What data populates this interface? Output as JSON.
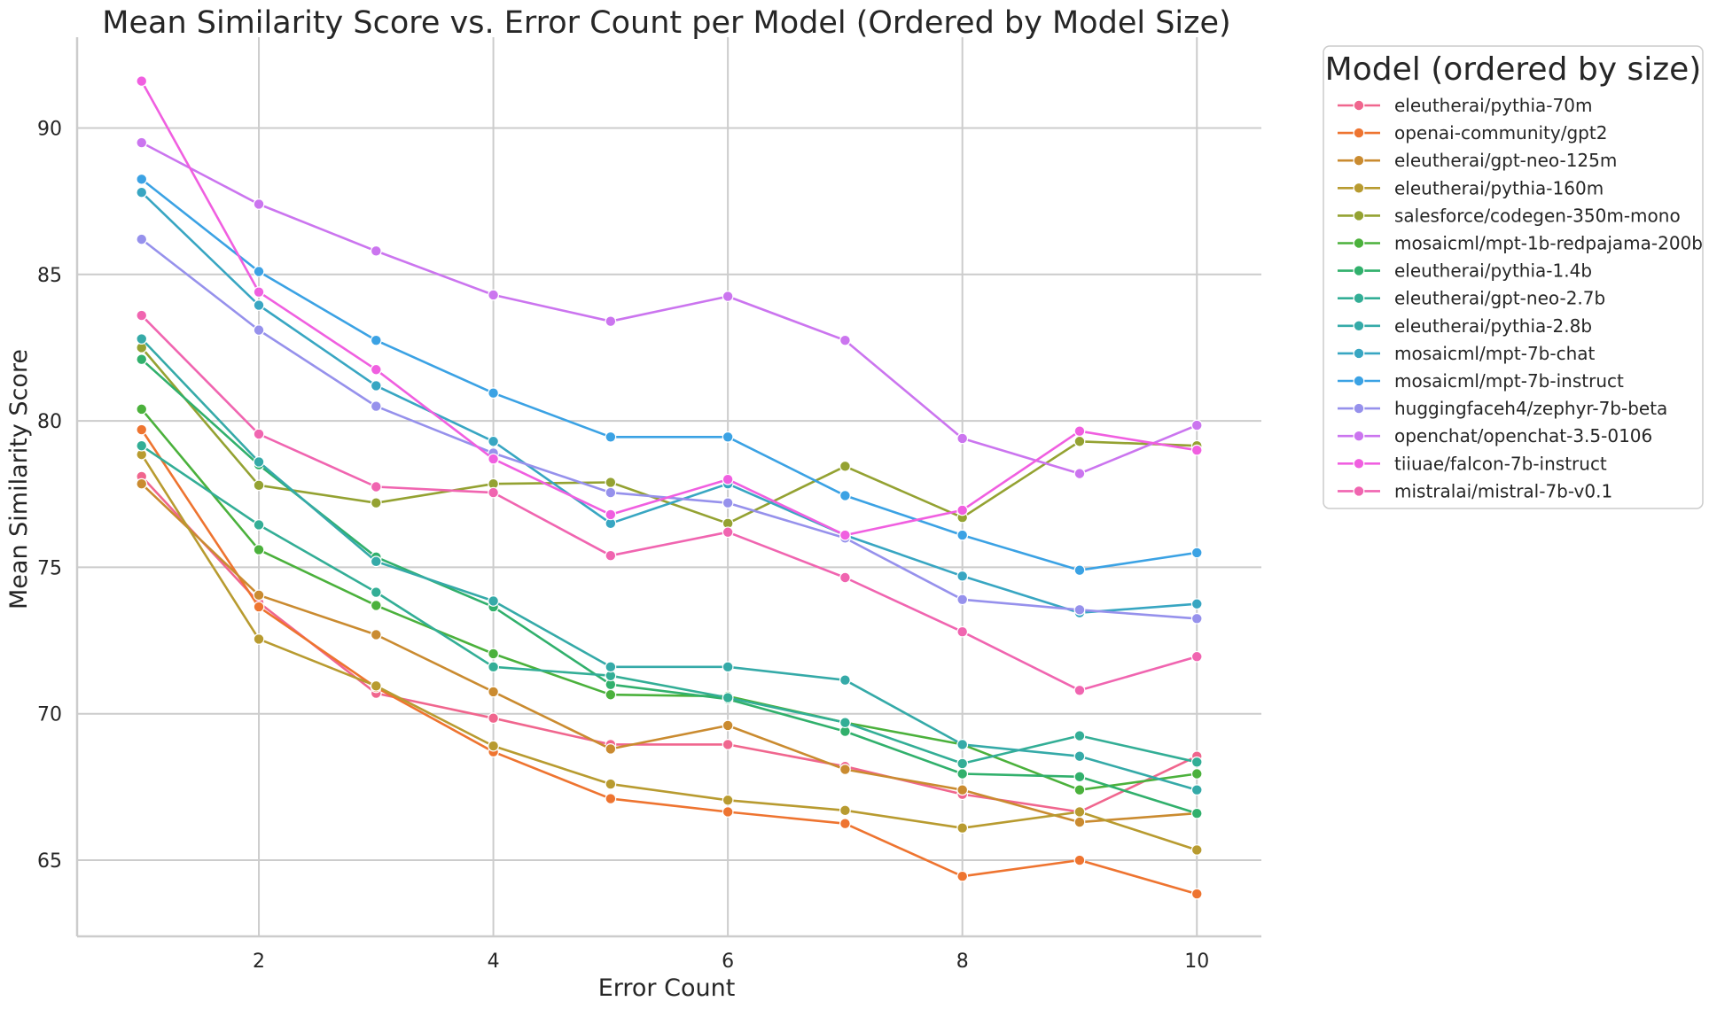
{
  "chart_data": {
    "type": "line",
    "title": "Mean Similarity Score vs. Error Count per Model (Ordered by Model Size)",
    "xlabel": "Error Count",
    "ylabel": "Mean Similarity Score",
    "xlim": [
      0.45,
      10.55
    ],
    "ylim": [
      62.4,
      93.1
    ],
    "xticks": [
      2,
      4,
      6,
      8,
      10
    ],
    "yticks": [
      65,
      70,
      75,
      80,
      85,
      90
    ],
    "grid": true,
    "legend_title": "Model (ordered by size)",
    "legend_position": "outside right",
    "x": [
      1,
      2,
      3,
      4,
      5,
      6,
      7,
      8,
      9,
      10
    ],
    "series": [
      {
        "name": "eleutherai/pythia-70m",
        "color": "#f0668e",
        "values": [
          78.1,
          73.8,
          70.7,
          69.85,
          68.95,
          68.95,
          68.2,
          67.25,
          66.65,
          68.55
        ]
      },
      {
        "name": "openai-community/gpt2",
        "color": "#ee7430",
        "values": [
          79.7,
          73.65,
          70.9,
          68.7,
          67.1,
          66.65,
          66.25,
          64.45,
          65.0,
          63.85
        ]
      },
      {
        "name": "eleutherai/gpt-neo-125m",
        "color": "#ca8b30",
        "values": [
          77.85,
          74.05,
          72.7,
          70.75,
          68.8,
          69.6,
          68.1,
          67.4,
          66.3,
          66.6
        ]
      },
      {
        "name": "eleutherai/pythia-160m",
        "color": "#b89b30",
        "values": [
          78.85,
          72.55,
          70.95,
          68.9,
          67.6,
          67.05,
          66.7,
          66.1,
          66.65,
          65.35
        ]
      },
      {
        "name": "salesforce/codegen-350m-mono",
        "color": "#94a232",
        "values": [
          82.5,
          77.8,
          77.2,
          77.85,
          77.9,
          76.5,
          78.45,
          76.7,
          79.3,
          79.15
        ]
      },
      {
        "name": "mosaicml/mpt-1b-redpajama-200b",
        "color": "#4bb13c",
        "values": [
          80.4,
          75.6,
          73.7,
          72.05,
          70.65,
          70.6,
          69.7,
          68.95,
          67.4,
          67.95
        ]
      },
      {
        "name": "eleutherai/pythia-1.4b",
        "color": "#31b06c",
        "values": [
          82.1,
          78.5,
          75.35,
          73.65,
          71.0,
          70.5,
          69.4,
          67.95,
          67.85,
          66.6
        ]
      },
      {
        "name": "eleutherai/gpt-neo-2.7b",
        "color": "#33ae96",
        "values": [
          79.15,
          76.45,
          74.15,
          71.6,
          71.3,
          70.55,
          69.7,
          68.3,
          69.25,
          68.35
        ]
      },
      {
        "name": "eleutherai/pythia-2.8b",
        "color": "#35aaa8",
        "values": [
          82.8,
          78.6,
          75.2,
          73.85,
          71.6,
          71.6,
          71.15,
          68.95,
          68.55,
          67.4
        ]
      },
      {
        "name": "mosaicml/mpt-7b-chat",
        "color": "#38a6c2",
        "values": [
          87.8,
          83.95,
          81.2,
          79.3,
          76.5,
          77.85,
          76.1,
          74.7,
          73.45,
          73.75
        ]
      },
      {
        "name": "mosaicml/mpt-7b-instruct",
        "color": "#3ba2e4",
        "values": [
          88.25,
          85.1,
          82.75,
          80.95,
          79.45,
          79.45,
          77.45,
          76.1,
          74.9,
          75.5
        ]
      },
      {
        "name": "huggingfaceh4/zephyr-7b-beta",
        "color": "#9691ec",
        "values": [
          86.2,
          83.1,
          80.5,
          78.9,
          77.55,
          77.2,
          76.0,
          73.9,
          73.55,
          73.25
        ]
      },
      {
        "name": "openchat/openchat-3.5-0106",
        "color": "#cb75ef",
        "values": [
          89.5,
          87.4,
          85.8,
          84.3,
          83.4,
          84.25,
          82.75,
          79.4,
          78.2,
          79.85
        ]
      },
      {
        "name": "tiiuae/falcon-7b-instruct",
        "color": "#f05fe0",
        "values": [
          91.6,
          84.4,
          81.75,
          78.7,
          76.8,
          78.0,
          76.1,
          76.95,
          79.65,
          79.0
        ]
      },
      {
        "name": "mistralai/mistral-7b-v0.1",
        "color": "#f065b0",
        "values": [
          83.6,
          79.55,
          77.75,
          77.55,
          75.4,
          76.2,
          74.65,
          72.8,
          70.8,
          71.95
        ]
      }
    ]
  }
}
